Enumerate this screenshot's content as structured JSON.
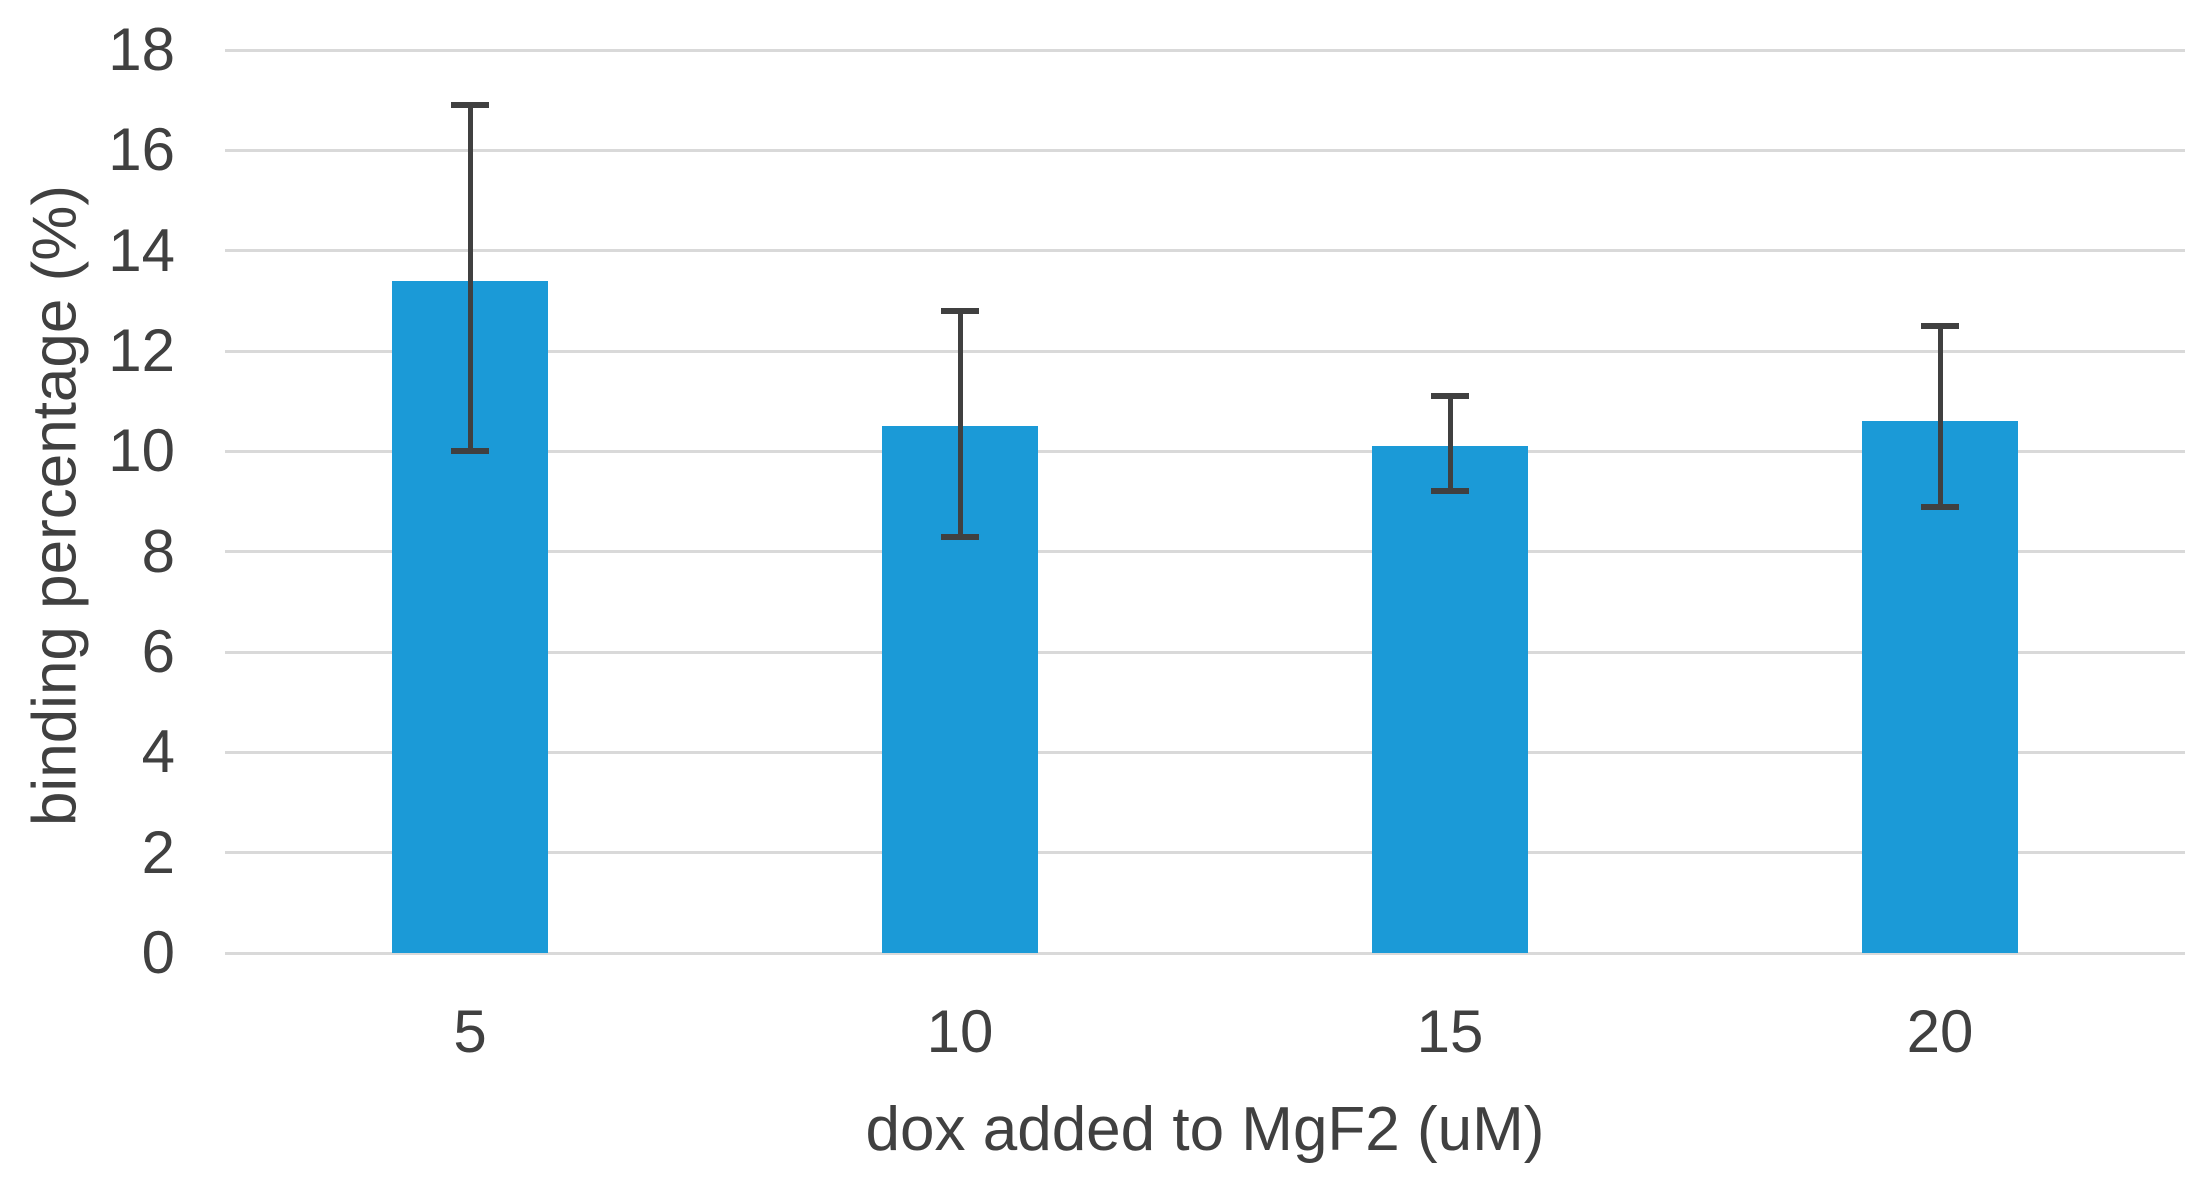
{
  "chart_data": {
    "type": "bar",
    "title": "",
    "xlabel": "dox added to MgF2 (uM)",
    "ylabel": "binding percentage (%)",
    "categories": [
      "5",
      "10",
      "15",
      "20"
    ],
    "values": [
      13.4,
      10.5,
      10.1,
      10.6
    ],
    "error_upper": [
      16.9,
      12.8,
      11.1,
      12.5
    ],
    "error_lower": [
      10.0,
      8.3,
      9.2,
      8.9
    ],
    "ylim": [
      0,
      18
    ],
    "yticks": [
      0,
      2,
      4,
      6,
      8,
      10,
      12,
      14,
      16,
      18
    ],
    "grid": "horizontal gridlines on, no legend, no chart title",
    "colors": {
      "bar": "#1B9AD7",
      "gridline": "#D9D9D9",
      "error_bar": "#404040",
      "text": "#404040",
      "background": "#FFFFFF"
    }
  }
}
